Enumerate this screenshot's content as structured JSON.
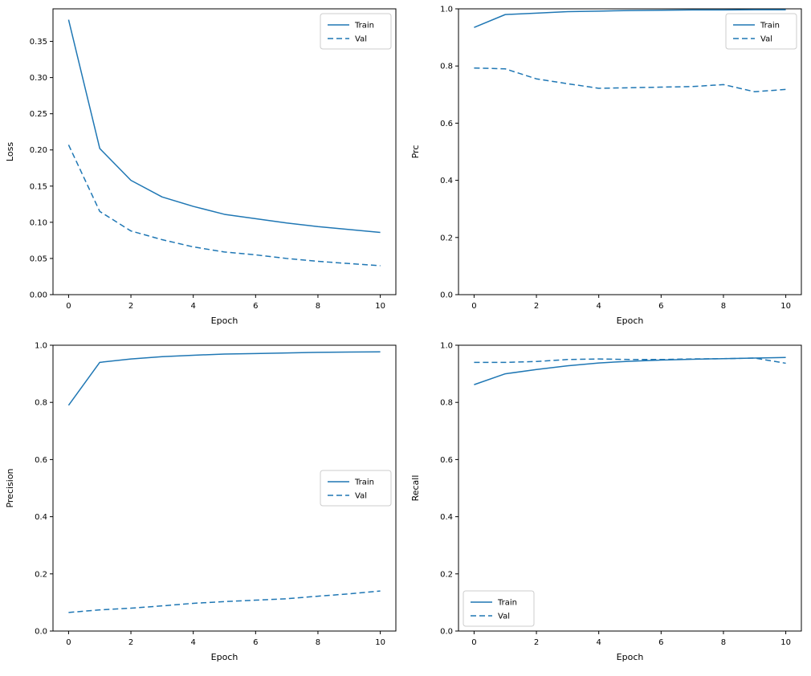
{
  "figure": {
    "background": "#ffffff",
    "accent_color": "#1f77b4"
  },
  "chart_data": [
    {
      "id": "loss",
      "type": "line",
      "title": "",
      "xlabel": "Epoch",
      "ylabel": "Loss",
      "x": [
        0,
        1,
        2,
        3,
        4,
        5,
        6,
        7,
        8,
        9,
        10
      ],
      "xlim": [
        -0.5,
        10.5
      ],
      "ylim": [
        0.0,
        0.395
      ],
      "xticks": [
        0,
        2,
        4,
        6,
        8,
        10
      ],
      "xtick_labels": [
        "0",
        "2",
        "4",
        "6",
        "8",
        "10"
      ],
      "yticks": [
        0.0,
        0.05,
        0.1,
        0.15,
        0.2,
        0.25,
        0.3,
        0.35
      ],
      "ytick_labels": [
        "0.00",
        "0.05",
        "0.10",
        "0.15",
        "0.20",
        "0.25",
        "0.30",
        "0.35"
      ],
      "grid": false,
      "legend": {
        "position": "upper right",
        "entries": [
          {
            "label": "Train",
            "style": "solid",
            "color": "#1f77b4"
          },
          {
            "label": "Val",
            "style": "dashed",
            "color": "#1f77b4"
          }
        ]
      },
      "series": [
        {
          "name": "Train",
          "style": "solid",
          "color": "#1f77b4",
          "values": [
            0.38,
            0.202,
            0.158,
            0.135,
            0.122,
            0.111,
            0.105,
            0.099,
            0.094,
            0.09,
            0.086
          ]
        },
        {
          "name": "Val",
          "style": "dashed",
          "color": "#1f77b4",
          "values": [
            0.207,
            0.115,
            0.088,
            0.076,
            0.066,
            0.059,
            0.055,
            0.05,
            0.046,
            0.043,
            0.04
          ]
        }
      ]
    },
    {
      "id": "prc",
      "type": "line",
      "title": "",
      "xlabel": "Epoch",
      "ylabel": "Prc",
      "x": [
        0,
        1,
        2,
        3,
        4,
        5,
        6,
        7,
        8,
        9,
        10
      ],
      "xlim": [
        -0.5,
        10.5
      ],
      "ylim": [
        0.0,
        1.0
      ],
      "xticks": [
        0,
        2,
        4,
        6,
        8,
        10
      ],
      "xtick_labels": [
        "0",
        "2",
        "4",
        "6",
        "8",
        "10"
      ],
      "yticks": [
        0.0,
        0.2,
        0.4,
        0.6,
        0.8,
        1.0
      ],
      "ytick_labels": [
        "0.0",
        "0.2",
        "0.4",
        "0.6",
        "0.8",
        "1.0"
      ],
      "grid": false,
      "legend": {
        "position": "upper right",
        "entries": [
          {
            "label": "Train",
            "style": "solid",
            "color": "#1f77b4"
          },
          {
            "label": "Val",
            "style": "dashed",
            "color": "#1f77b4"
          }
        ]
      },
      "series": [
        {
          "name": "Train",
          "style": "solid",
          "color": "#1f77b4",
          "values": [
            0.935,
            0.98,
            0.985,
            0.99,
            0.992,
            0.994,
            0.995,
            0.996,
            0.996,
            0.997,
            0.997
          ]
        },
        {
          "name": "Val",
          "style": "dashed",
          "color": "#1f77b4",
          "values": [
            0.793,
            0.79,
            0.755,
            0.738,
            0.722,
            0.724,
            0.726,
            0.728,
            0.735,
            0.71,
            0.718
          ]
        }
      ]
    },
    {
      "id": "precision",
      "type": "line",
      "title": "",
      "xlabel": "Epoch",
      "ylabel": "Precision",
      "x": [
        0,
        1,
        2,
        3,
        4,
        5,
        6,
        7,
        8,
        9,
        10
      ],
      "xlim": [
        -0.5,
        10.5
      ],
      "ylim": [
        0.0,
        1.0
      ],
      "xticks": [
        0,
        2,
        4,
        6,
        8,
        10
      ],
      "xtick_labels": [
        "0",
        "2",
        "4",
        "6",
        "8",
        "10"
      ],
      "yticks": [
        0.0,
        0.2,
        0.4,
        0.6,
        0.8,
        1.0
      ],
      "ytick_labels": [
        "0.0",
        "0.2",
        "0.4",
        "0.6",
        "0.8",
        "1.0"
      ],
      "grid": false,
      "legend": {
        "position": "center right",
        "entries": [
          {
            "label": "Train",
            "style": "solid",
            "color": "#1f77b4"
          },
          {
            "label": "Val",
            "style": "dashed",
            "color": "#1f77b4"
          }
        ]
      },
      "series": [
        {
          "name": "Train",
          "style": "solid",
          "color": "#1f77b4",
          "values": [
            0.79,
            0.94,
            0.952,
            0.96,
            0.965,
            0.969,
            0.971,
            0.973,
            0.975,
            0.976,
            0.977
          ]
        },
        {
          "name": "Val",
          "style": "dashed",
          "color": "#1f77b4",
          "values": [
            0.065,
            0.074,
            0.08,
            0.088,
            0.097,
            0.103,
            0.108,
            0.113,
            0.122,
            0.13,
            0.14
          ]
        }
      ]
    },
    {
      "id": "recall",
      "type": "line",
      "title": "",
      "xlabel": "Epoch",
      "ylabel": "Recall",
      "x": [
        0,
        1,
        2,
        3,
        4,
        5,
        6,
        7,
        8,
        9,
        10
      ],
      "xlim": [
        -0.5,
        10.5
      ],
      "ylim": [
        0.0,
        1.0
      ],
      "xticks": [
        0,
        2,
        4,
        6,
        8,
        10
      ],
      "xtick_labels": [
        "0",
        "2",
        "4",
        "6",
        "8",
        "10"
      ],
      "yticks": [
        0.0,
        0.2,
        0.4,
        0.6,
        0.8,
        1.0
      ],
      "ytick_labels": [
        "0.0",
        "0.2",
        "0.4",
        "0.6",
        "0.8",
        "1.0"
      ],
      "grid": false,
      "legend": {
        "position": "lower left",
        "entries": [
          {
            "label": "Train",
            "style": "solid",
            "color": "#1f77b4"
          },
          {
            "label": "Val",
            "style": "dashed",
            "color": "#1f77b4"
          }
        ]
      },
      "series": [
        {
          "name": "Train",
          "style": "solid",
          "color": "#1f77b4",
          "values": [
            0.862,
            0.9,
            0.915,
            0.928,
            0.938,
            0.944,
            0.948,
            0.951,
            0.953,
            0.955,
            0.957
          ]
        },
        {
          "name": "Val",
          "style": "dashed",
          "color": "#1f77b4",
          "values": [
            0.94,
            0.94,
            0.943,
            0.95,
            0.952,
            0.95,
            0.95,
            0.952,
            0.953,
            0.955,
            0.937
          ]
        }
      ]
    }
  ]
}
